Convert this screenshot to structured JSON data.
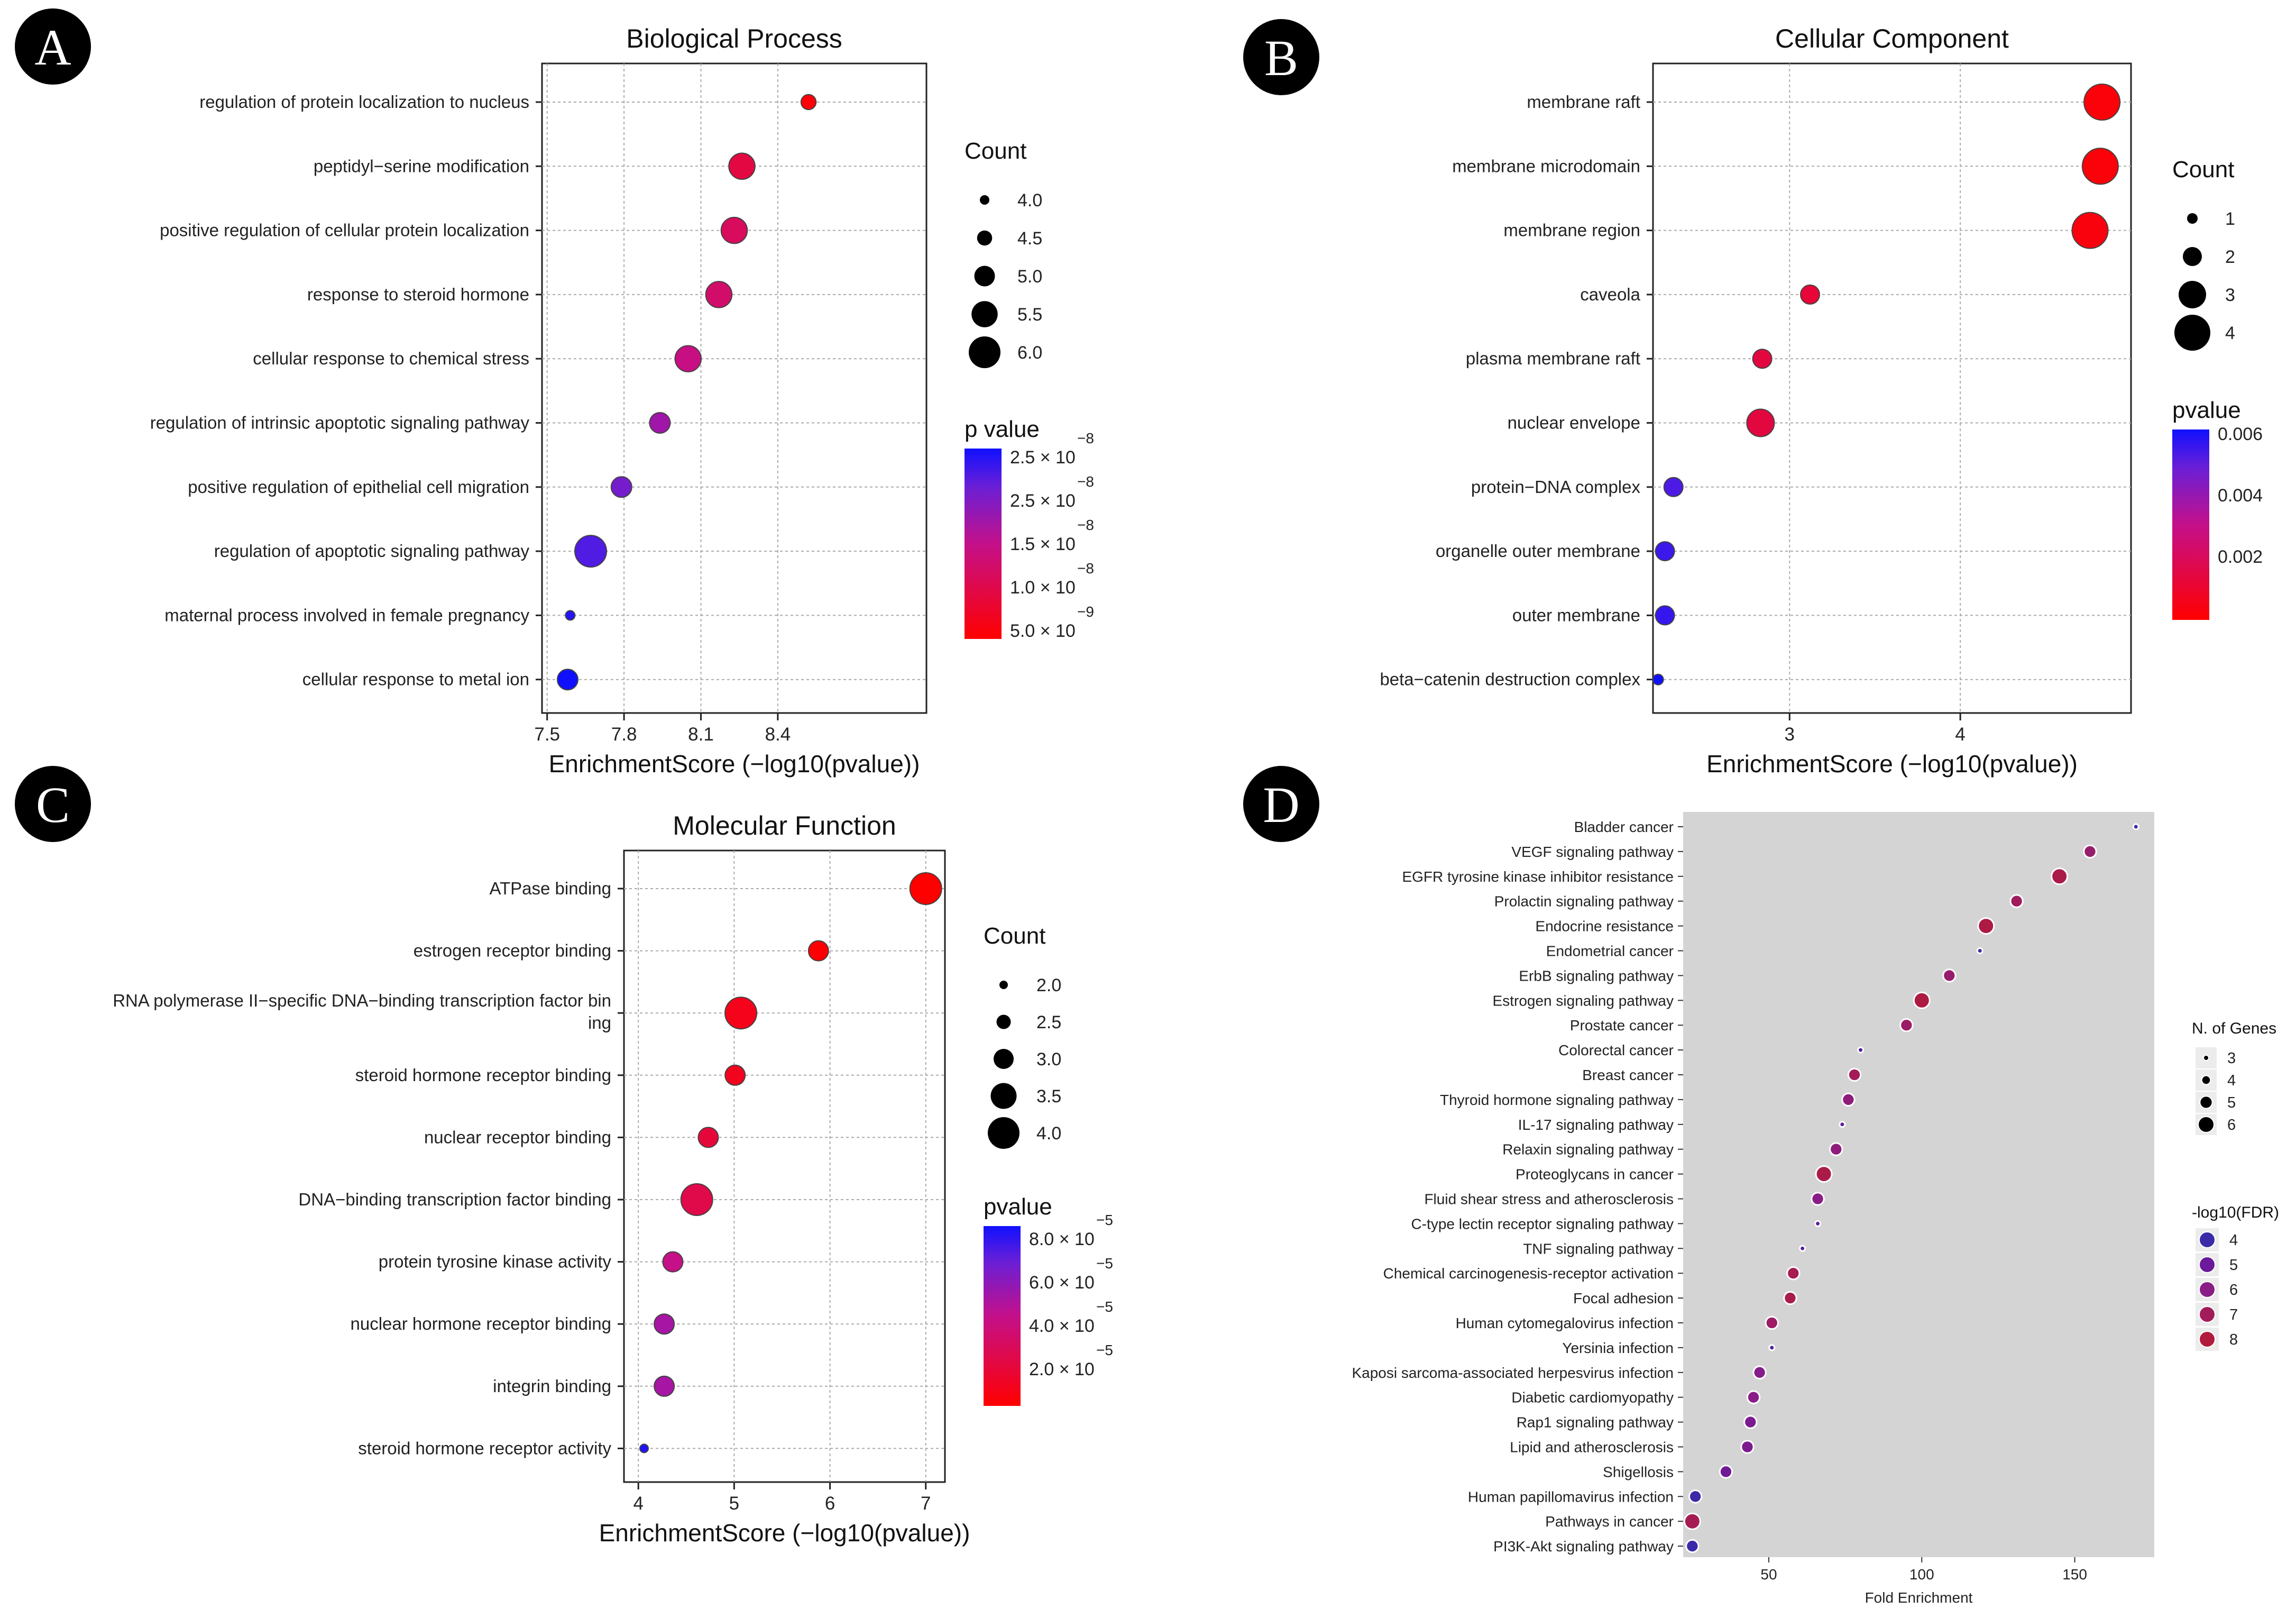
{
  "panel_letters": [
    "A",
    "B",
    "C",
    "D"
  ],
  "chart_data": [
    {
      "type": "scatter",
      "panel": "A",
      "title": "Biological Process",
      "xlabel": "EnrichmentScore (−log10(pvalue))",
      "ylabel": "",
      "xlim": [
        7.48,
        8.98
      ],
      "xticks": [
        "7.5",
        "7.8",
        "8.1",
        "8.4"
      ],
      "xtick_values": [
        7.5,
        7.8,
        8.1,
        8.4
      ],
      "grid": true,
      "categories": [
        "regulation of protein localization to nucleus",
        "peptidyl−serine modification",
        "positive regulation of cellular protein localization",
        "response to steroid hormone",
        "cellular response to chemical stress",
        "regulation of intrinsic apoptotic signaling pathway",
        "positive regulation of epithelial cell migration",
        "regulation of apoptotic signaling pathway",
        "maternal process involved in female pregnancy",
        "cellular response to metal ion"
      ],
      "x": [
        8.52,
        8.26,
        8.23,
        8.17,
        8.05,
        7.94,
        7.79,
        7.67,
        7.59,
        7.58
      ],
      "size": [
        4.5,
        5.5,
        5.5,
        5.5,
        5.5,
        5.0,
        5.0,
        6.0,
        4.0,
        5.0
      ],
      "color": [
        5.5e-09,
        1e-08,
        1.2e-08,
        1.3e-08,
        1.5e-08,
        1.8e-08,
        2.1e-08,
        2.3e-08,
        2.5e-08,
        2.6e-08
      ],
      "size_legend": {
        "title": "Count",
        "labels": [
          "4.0",
          "4.5",
          "5.0",
          "5.5",
          "6.0"
        ],
        "values": [
          4.0,
          4.5,
          5.0,
          5.5,
          6.0
        ]
      },
      "color_legend": {
        "title": "p value",
        "labels": [
          "2.5 × 10",
          "2.5 × 10",
          "1.5 × 10",
          "1.0 × 10",
          "5.0 × 10"
        ],
        "exponents": [
          "−8",
          "−8",
          "−8",
          "−8",
          "−9"
        ]
      }
    },
    {
      "type": "scatter",
      "panel": "B",
      "title": "Cellular Component",
      "xlabel": "EnrichmentScore (−log10(pvalue))",
      "ylabel": "",
      "xlim": [
        2.2,
        5.0
      ],
      "xticks": [
        "3",
        "4"
      ],
      "xtick_values": [
        3,
        4
      ],
      "grid": true,
      "categories": [
        "membrane raft",
        "membrane microdomain",
        "membrane region",
        "caveola",
        "plasma membrane raft",
        "nuclear envelope",
        "protein−DNA complex",
        "organelle outer membrane",
        "outer membrane",
        "beta−catenin destruction complex"
      ],
      "x": [
        4.83,
        4.82,
        4.76,
        3.12,
        2.84,
        2.83,
        2.32,
        2.27,
        2.27,
        2.23
      ],
      "size": [
        4,
        4,
        4,
        2,
        2,
        3,
        2,
        2,
        2,
        1
      ],
      "color": [
        0.0002,
        0.0002,
        0.0003,
        0.0012,
        0.0014,
        0.0014,
        0.0052,
        0.0054,
        0.0055,
        0.006
      ],
      "size_legend": {
        "title": "Count",
        "labels": [
          "1",
          "2",
          "3",
          "4"
        ],
        "values": [
          1,
          2,
          3,
          4
        ]
      },
      "color_legend": {
        "title": "pvalue",
        "labels": [
          "0.006",
          "0.004",
          "0.002"
        ],
        "values": [
          0.006,
          0.004,
          0.002
        ]
      }
    },
    {
      "type": "scatter",
      "panel": "C",
      "title": "Molecular Function",
      "xlabel": "EnrichmentScore (−log10(pvalue))",
      "ylabel": "",
      "xlim": [
        3.85,
        7.2
      ],
      "xticks": [
        "4",
        "5",
        "6",
        "7"
      ],
      "xtick_values": [
        4,
        5,
        6,
        7
      ],
      "grid": true,
      "categories": [
        "ATPase binding",
        "estrogen receptor binding",
        "RNA polymerase II−specific DNA−binding transcription factor binding",
        "steroid hormone receptor binding",
        "nuclear receptor binding",
        "DNA−binding transcription factor binding",
        "protein tyrosine kinase activity",
        "nuclear hormone receptor binding",
        "integrin binding",
        "steroid hormone receptor activity"
      ],
      "x": [
        7.0,
        5.88,
        5.07,
        5.01,
        4.73,
        4.61,
        4.36,
        4.27,
        4.27,
        4.06
      ],
      "size": [
        4.0,
        3.0,
        4.0,
        3.0,
        3.0,
        4.0,
        3.0,
        3.0,
        3.0,
        2.0
      ],
      "color": [
        1e-07,
        1.3e-06,
        8.5e-06,
        9.8e-06,
        1.9e-05,
        2.4e-05,
        4.4e-05,
        5.4e-05,
        5.4e-05,
        8.7e-05
      ],
      "size_legend": {
        "title": "Count",
        "labels": [
          "2.0",
          "2.5",
          "3.0",
          "3.5",
          "4.0"
        ],
        "values": [
          2.0,
          2.5,
          3.0,
          3.5,
          4.0
        ]
      },
      "color_legend": {
        "title": "pvalue",
        "labels": [
          "8.0 × 10",
          "6.0 × 10",
          "4.0 × 10",
          "2.0 × 10"
        ],
        "exponents": [
          "−5",
          "−5",
          "−5",
          "−5"
        ]
      }
    },
    {
      "type": "scatter",
      "panel": "D",
      "title": "",
      "xlabel": "Fold Enrichment",
      "ylabel": "",
      "xlim": [
        22,
        176
      ],
      "xticks": [
        "50",
        "100",
        "150"
      ],
      "xtick_values": [
        50,
        100,
        150
      ],
      "grid": false,
      "categories": [
        "Bladder cancer",
        "VEGF signaling pathway",
        "EGFR tyrosine kinase inhibitor resistance",
        "Prolactin signaling pathway",
        "Endocrine resistance",
        "Endometrial cancer",
        "ErbB signaling pathway",
        "Estrogen signaling pathway",
        "Prostate cancer",
        "Colorectal cancer",
        "Breast cancer",
        "Thyroid hormone signaling pathway",
        "IL-17 signaling pathway",
        "Relaxin signaling pathway",
        "Proteoglycans in cancer",
        "Fluid shear stress and atherosclerosis",
        "C-type lectin receptor signaling pathway",
        "TNF signaling pathway",
        "Chemical carcinogenesis-receptor activation",
        "Focal adhesion",
        "Human cytomegalovirus infection",
        "Yersinia infection",
        "Kaposi sarcoma-associated herpesvirus infection",
        "Diabetic cardiomyopathy",
        "Rap1 signaling pathway",
        "Lipid and atherosclerosis",
        "Shigellosis",
        "Human papillomavirus infection",
        "Pathways in cancer",
        "PI3K-Akt signaling pathway"
      ],
      "x": [
        170,
        155,
        145,
        131,
        121,
        119,
        109,
        100,
        95,
        80,
        78,
        76,
        74,
        72,
        68,
        66,
        66,
        61,
        58,
        57,
        51,
        51,
        47,
        45,
        44,
        43,
        36,
        26,
        25,
        25
      ],
      "size": [
        3,
        5,
        6,
        5,
        6,
        3,
        5,
        6,
        5,
        3,
        5,
        5,
        3,
        5,
        6,
        5,
        3,
        3,
        5,
        5,
        5,
        3,
        5,
        5,
        5,
        5,
        5,
        5,
        6,
        5
      ],
      "color": [
        4.2,
        6.6,
        7.6,
        6.9,
        7.7,
        4.2,
        6.6,
        7.8,
        6.7,
        4.6,
        7.1,
        6.2,
        4.8,
        6.2,
        7.6,
        6.0,
        4.7,
        4.6,
        7.3,
        7.4,
        6.8,
        4.6,
        5.8,
        6.0,
        5.5,
        5.6,
        5.2,
        4.1,
        7.2,
        4.0
      ],
      "size_legend": {
        "title": "N. of Genes",
        "labels": [
          "3",
          "4",
          "5",
          "6"
        ],
        "values": [
          3,
          4,
          5,
          6
        ]
      },
      "color_legend": {
        "title": "-log10(FDR)",
        "labels": [
          "4",
          "5",
          "6",
          "7",
          "8"
        ],
        "values": [
          4,
          5,
          6,
          7,
          8
        ]
      }
    }
  ]
}
